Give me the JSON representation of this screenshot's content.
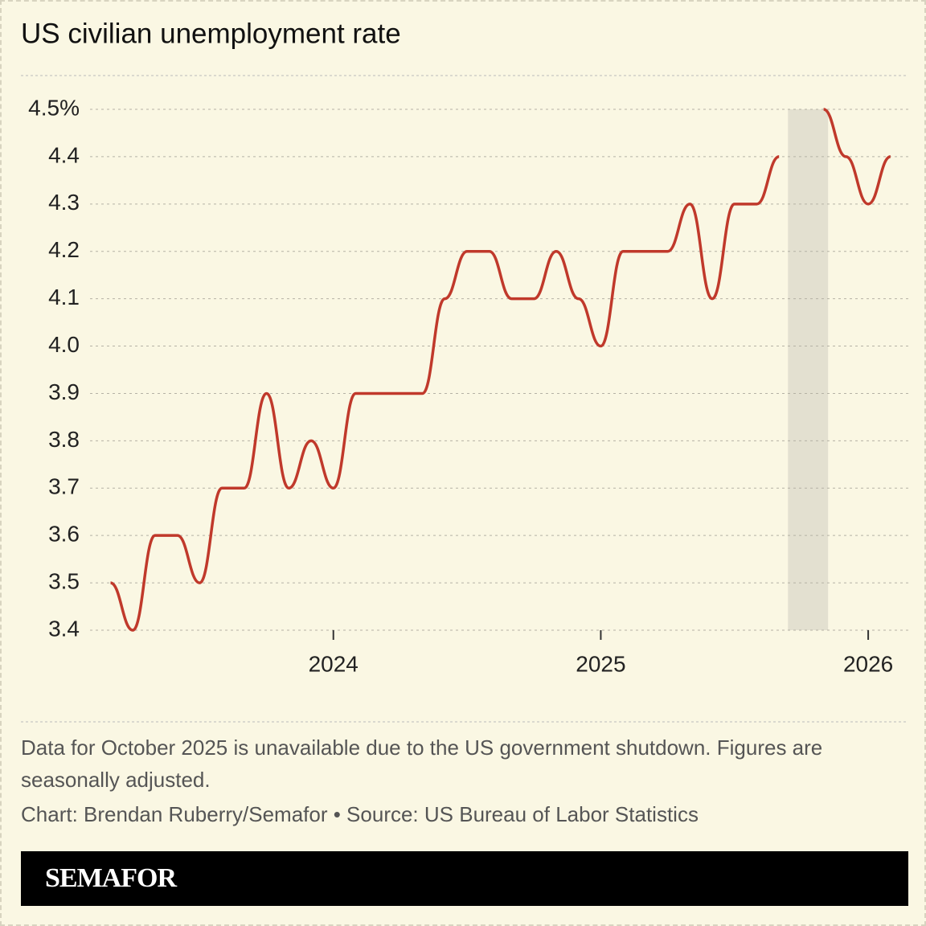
{
  "chart_data": {
    "type": "line",
    "title": "US civilian unemployment rate",
    "x": [
      2023.1667,
      2023.25,
      2023.3333,
      2023.4167,
      2023.5,
      2023.5833,
      2023.6667,
      2023.75,
      2023.8333,
      2023.9167,
      2024.0,
      2024.0833,
      2024.1667,
      2024.25,
      2024.3333,
      2024.4167,
      2024.5,
      2024.5833,
      2024.6667,
      2024.75,
      2024.8333,
      2024.9167,
      2025.0,
      2025.0833,
      2025.1667,
      2025.25,
      2025.3333,
      2025.4167,
      2025.5,
      2025.5833,
      2025.6667,
      2025.75,
      2025.8333,
      2025.9167,
      2026.0,
      2026.0833
    ],
    "series": [
      {
        "name": "Unemployment rate",
        "color": "#c0392b",
        "values": [
          3.5,
          3.4,
          3.6,
          3.6,
          3.5,
          3.7,
          3.7,
          3.9,
          3.7,
          3.8,
          3.7,
          3.9,
          3.9,
          3.9,
          3.9,
          4.1,
          4.2,
          4.2,
          4.1,
          4.1,
          4.2,
          4.1,
          4.0,
          4.2,
          4.2,
          4.2,
          4.3,
          4.1,
          4.3,
          4.3,
          4.4,
          null,
          4.5,
          4.4,
          4.3,
          4.4
        ]
      }
    ],
    "shade": [
      2025.7,
      2025.85
    ],
    "xlim": [
      2023.09,
      2026.15
    ],
    "xticks": [
      2024,
      2025,
      2026
    ],
    "ylim": [
      3.4,
      4.5
    ],
    "yticks": [
      {
        "value": 4.5,
        "label": "4.5%"
      },
      4.4,
      4.3,
      4.2,
      4.1,
      {
        "value": 4.0,
        "label": "4.0"
      },
      3.9,
      3.8,
      3.7,
      3.6,
      3.5,
      3.4
    ],
    "grid": true,
    "note": "Data for October 2025 is unavailable due to the US government shutdown. Figures are seasonally adjusted.",
    "credit": "Chart: Brendan Ruberry/Semafor • Source: US Bureau of Labor Statistics",
    "brand": "SEMAFOR"
  }
}
